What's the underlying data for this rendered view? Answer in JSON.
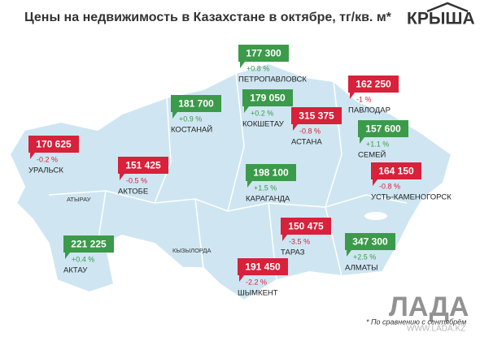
{
  "header": {
    "title": "Цены на недвижимость в Казахстане в октябре, тг/кв. м*",
    "logo": "КРЫША"
  },
  "cities": [
    {
      "name": "ПЕТРОПАВЛОВСК",
      "price": "177 300",
      "change": "+0.8 %",
      "trend": "up"
    },
    {
      "name": "ПАВЛОДАР",
      "price": "162 250",
      "change": "-1 %",
      "trend": "down"
    },
    {
      "name": "КОСТАНАЙ",
      "price": "181 700",
      "change": "+0.9 %",
      "trend": "up"
    },
    {
      "name": "КОКШЕТАУ",
      "price": "179 050",
      "change": "+0.2 %",
      "trend": "up"
    },
    {
      "name": "АСТАНА",
      "price": "315 375",
      "change": "-0.8 %",
      "trend": "down"
    },
    {
      "name": "СЕМЕЙ",
      "price": "157 600",
      "change": "+1.1 %",
      "trend": "up"
    },
    {
      "name": "УРАЛЬСК",
      "price": "170 625",
      "change": "-0.2 %",
      "trend": "down"
    },
    {
      "name": "АКТОБЕ",
      "price": "151 425",
      "change": "-0.5 %",
      "trend": "down"
    },
    {
      "name": "КАРАГАНДА",
      "price": "198 100",
      "change": "+1.5 %",
      "trend": "up"
    },
    {
      "name": "УСТЬ-КАМЕНОГОРСК",
      "price": "164 150",
      "change": "-0.8 %",
      "trend": "down"
    },
    {
      "name": "ТАРАЗ",
      "price": "150 475",
      "change": "-3.5 %",
      "trend": "down"
    },
    {
      "name": "АЛМАТЫ",
      "price": "347 300",
      "change": "+2.5 %",
      "trend": "up"
    },
    {
      "name": "АКТАУ",
      "price": "221 225",
      "change": "+0.4 %",
      "trend": "up"
    },
    {
      "name": "ШЫМКЕНТ",
      "price": "191 450",
      "change": "-2.2 %",
      "trend": "down"
    }
  ],
  "regions": [
    "АТЫРАУ",
    "КЫЗЫЛОРДА"
  ],
  "footnote": "* По сравнению с сентябрём",
  "watermark": {
    "logo": "ЛАДА",
    "url": "WWW.LADA.KZ"
  },
  "colors": {
    "up": "#3c9a4b",
    "down": "#d8213b"
  }
}
